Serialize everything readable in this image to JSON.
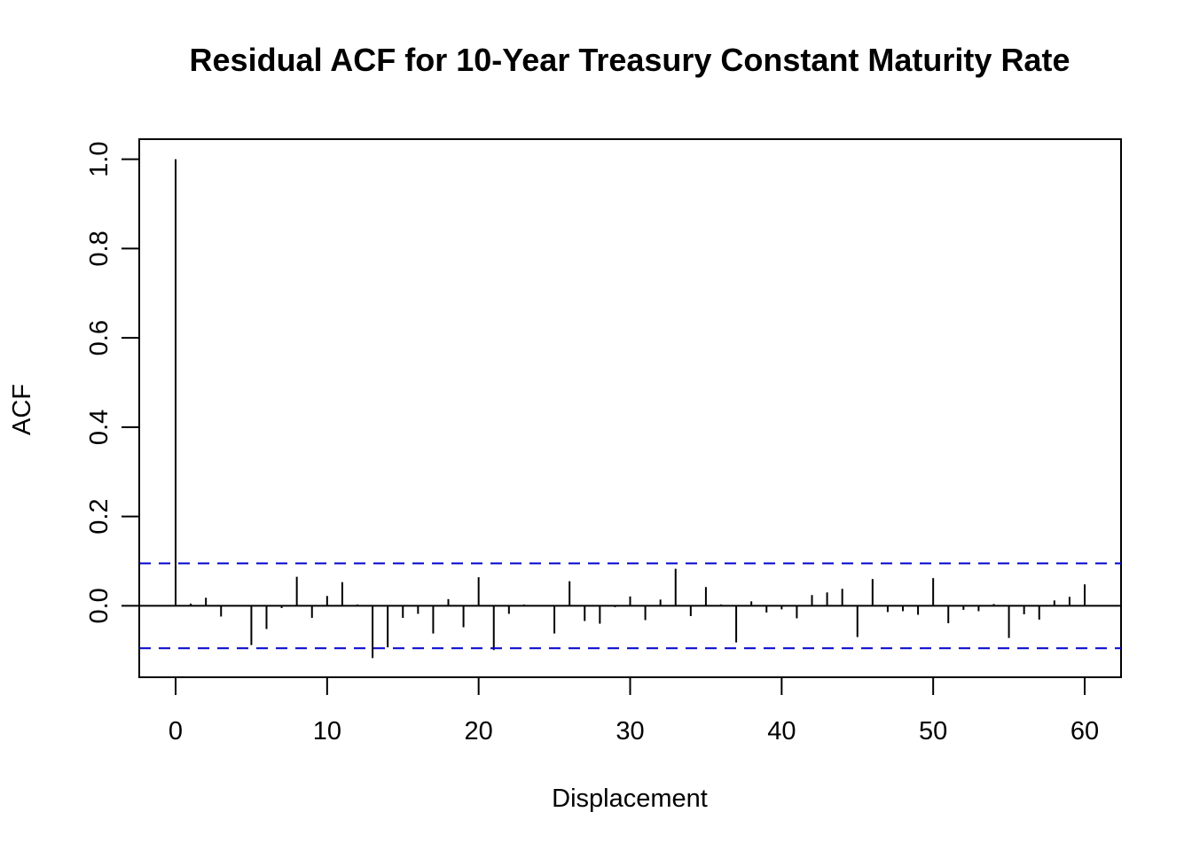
{
  "chart_data": {
    "type": "bar",
    "title": "Residual ACF for 10-Year Treasury Constant Maturity Rate",
    "xlabel": "Displacement",
    "ylabel": "ACF",
    "x_ticks": [
      0,
      10,
      20,
      30,
      40,
      50,
      60
    ],
    "y_ticks": [
      0.0,
      0.2,
      0.4,
      0.6,
      0.8,
      1.0
    ],
    "x_tick_labels": [
      "0",
      "10",
      "20",
      "30",
      "40",
      "50",
      "60"
    ],
    "y_tick_labels": [
      "0.0",
      "0.2",
      "0.4",
      "0.6",
      "0.8",
      "1.0"
    ],
    "xlim": [
      -2.4,
      62.4
    ],
    "ylim": [
      -0.16,
      1.045
    ],
    "confidence_band": 0.095,
    "colors": {
      "bars": "#000000",
      "confidence_line": "#0000cc",
      "zero_line": "#000000"
    },
    "lags": [
      0,
      1,
      2,
      3,
      4,
      5,
      6,
      7,
      8,
      9,
      10,
      11,
      12,
      13,
      14,
      15,
      16,
      17,
      18,
      19,
      20,
      21,
      22,
      23,
      24,
      25,
      26,
      27,
      28,
      29,
      30,
      31,
      32,
      33,
      34,
      35,
      36,
      37,
      38,
      39,
      40,
      41,
      42,
      43,
      44,
      45,
      46,
      47,
      48,
      49,
      50,
      51,
      52,
      53,
      54,
      55,
      56,
      57,
      58,
      59,
      60
    ],
    "values": [
      1.0,
      0.005,
      0.018,
      -0.024,
      0.0,
      -0.088,
      -0.052,
      -0.005,
      0.065,
      -0.027,
      0.022,
      0.053,
      0.003,
      -0.117,
      -0.093,
      -0.027,
      -0.018,
      -0.062,
      0.015,
      -0.048,
      0.064,
      -0.099,
      -0.018,
      0.003,
      0.0,
      -0.062,
      0.055,
      -0.034,
      -0.04,
      -0.003,
      0.021,
      -0.032,
      0.014,
      0.083,
      -0.023,
      0.042,
      0.003,
      -0.082,
      0.01,
      -0.015,
      -0.008,
      -0.028,
      0.024,
      0.03,
      0.038,
      -0.07,
      0.06,
      -0.014,
      -0.012,
      -0.02,
      0.062,
      -0.039,
      -0.009,
      -0.012,
      0.004,
      -0.072,
      -0.019,
      -0.031,
      0.012,
      0.02,
      0.048
    ]
  }
}
